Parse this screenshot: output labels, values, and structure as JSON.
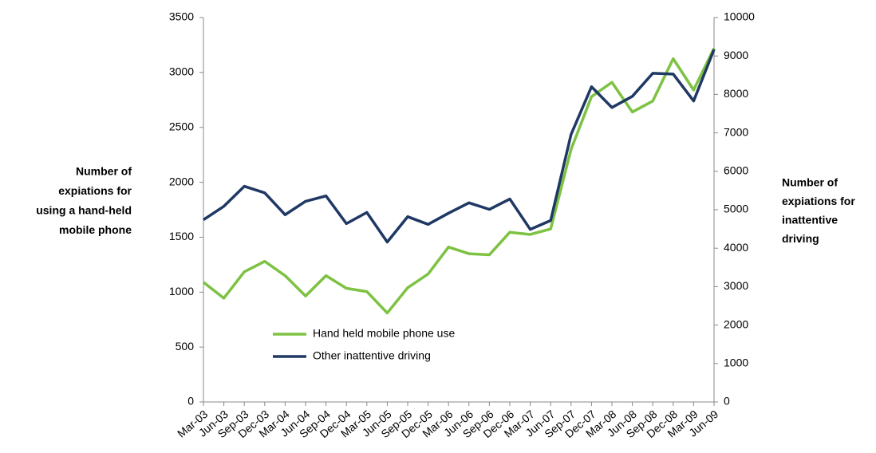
{
  "chart_data": {
    "type": "line",
    "y_axis_title": [
      "Number of",
      "expiations for",
      "using a hand-held",
      "mobile phone"
    ],
    "y2_axis_title": [
      "Number of",
      "expiations for",
      "inattentive",
      "driving"
    ],
    "categories": [
      "Mar-03",
      "Jun-03",
      "Sep-03",
      "Dec-03",
      "Mar-04",
      "Jun-04",
      "Sep-04",
      "Dec-04",
      "Mar-05",
      "Jun-05",
      "Sep-05",
      "Dec-05",
      "Mar-06",
      "Jun-06",
      "Sep-06",
      "Dec-06",
      "Mar-07",
      "Jun-07",
      "Sep-07",
      "Dec-07",
      "Mar-08",
      "Jun-08",
      "Sep-08",
      "Dec-08",
      "Mar-09",
      "Jun-09"
    ],
    "series": [
      {
        "name": "Hand held mobile phone use",
        "color": "#7dc242",
        "values": [
          1090,
          945,
          1185,
          1280,
          1150,
          965,
          1150,
          1035,
          1005,
          810,
          1040,
          1165,
          1410,
          1350,
          1340,
          1545,
          1525,
          1575,
          2300,
          2780,
          2910,
          2640,
          2740,
          3125,
          2840,
          3220
        ]
      },
      {
        "name": "Other inattentive driving",
        "color": "#1f3864",
        "axis": "y2",
        "values": [
          4740,
          5090,
          5610,
          5440,
          4870,
          5220,
          5360,
          4640,
          4930,
          4160,
          4820,
          4620,
          4910,
          5180,
          5010,
          5280,
          4490,
          4720,
          6960,
          8200,
          7660,
          7950,
          8550,
          8530,
          7830,
          9170
        ]
      }
    ],
    "ylim": [
      0,
      3500
    ],
    "yticks": [
      0,
      500,
      1000,
      1500,
      2000,
      2500,
      3000,
      3500
    ],
    "y2lim": [
      0,
      10000
    ],
    "y2ticks": [
      0,
      1000,
      2000,
      3000,
      4000,
      5000,
      6000,
      7000,
      8000,
      9000,
      10000
    ],
    "grid": false,
    "legend": "bottom-left"
  }
}
